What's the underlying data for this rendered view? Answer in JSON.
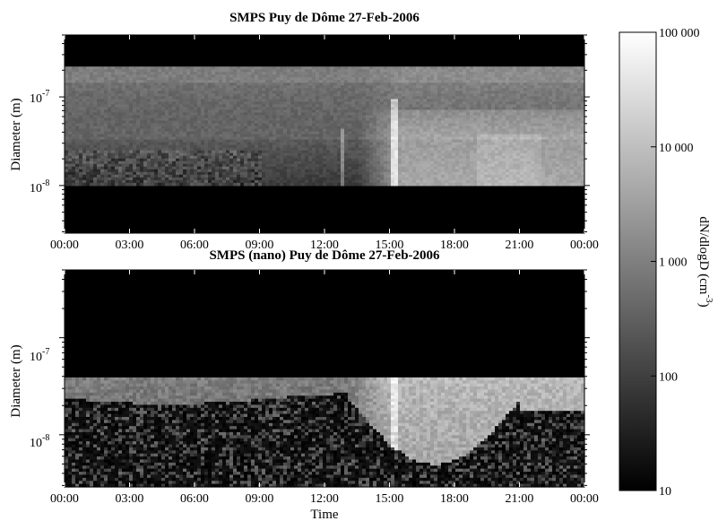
{
  "chart_data": [
    {
      "type": "heatmap",
      "title": "SMPS Puy de Dôme 27-Feb-2006",
      "xlabel": "",
      "ylabel": "Diameter (m)",
      "x_ticks": [
        "00:00",
        "03:00",
        "06:00",
        "09:00",
        "12:00",
        "15:00",
        "18:00",
        "21:00",
        "00:00"
      ],
      "y_ticks": [
        {
          "base": "10",
          "exp": "-7",
          "value": 1e-07
        },
        {
          "base": "10",
          "exp": "-8",
          "value": 1e-08
        }
      ],
      "y_scale": "log",
      "ylim": [
        2.9e-09,
        5e-07
      ],
      "xlim_hours": [
        0,
        24
      ],
      "measured_diameter_range_m": [
        1e-08,
        2.2e-07
      ],
      "time_hours_samples": [
        0,
        3,
        6,
        9,
        12,
        13.5,
        15,
        16.5,
        18,
        19.5,
        21,
        23.5
      ],
      "notes": "Grey-scale intensity is dN/dlogD; no data (black) outside the measured diameter range."
    },
    {
      "type": "heatmap",
      "title": "SMPS (nano) Puy de Dôme 27-Feb-2006",
      "xlabel": "Time",
      "ylabel": "Diameter (m)",
      "x_ticks": [
        "00:00",
        "03:00",
        "06:00",
        "09:00",
        "12:00",
        "15:00",
        "18:00",
        "21:00",
        "00:00"
      ],
      "y_ticks": [
        {
          "base": "10",
          "exp": "-7",
          "value": 1e-07
        },
        {
          "base": "10",
          "exp": "-8",
          "value": 1e-08
        }
      ],
      "y_scale": "log",
      "ylim": [
        2.9e-09,
        5e-07
      ],
      "xlim_hours": [
        0,
        24
      ],
      "measured_diameter_range_m": [
        2.9e-09,
        3.9e-08
      ]
    }
  ],
  "colorbar": {
    "label": "dN/dlogD (cm",
    "label_exp": "-3",
    "label_suffix": ")",
    "scale": "log",
    "range": [
      10,
      100000
    ],
    "ticks": [
      "100 000",
      "10 000",
      "1 000",
      "100",
      "10"
    ],
    "tick_values": [
      100000,
      10000,
      1000,
      100,
      10
    ],
    "colormap": [
      "#000000",
      "#ffffff"
    ]
  }
}
